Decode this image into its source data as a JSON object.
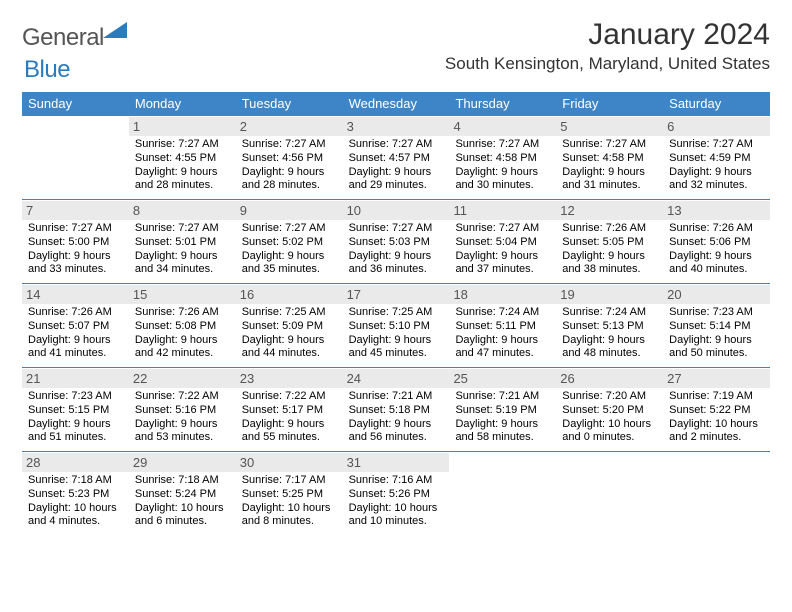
{
  "logo": {
    "general": "General",
    "blue": "Blue"
  },
  "title": "January 2024",
  "location": "South Kensington, Maryland, United States",
  "header_bg": "#3d85c6",
  "daynum_bg": "#eaeaea",
  "day_headers": [
    "Sunday",
    "Monday",
    "Tuesday",
    "Wednesday",
    "Thursday",
    "Friday",
    "Saturday"
  ],
  "weeks": [
    [
      {
        "n": "",
        "sunrise": "",
        "sunset": "",
        "daylight": ""
      },
      {
        "n": "1",
        "sunrise": "Sunrise: 7:27 AM",
        "sunset": "Sunset: 4:55 PM",
        "daylight": "Daylight: 9 hours and 28 minutes."
      },
      {
        "n": "2",
        "sunrise": "Sunrise: 7:27 AM",
        "sunset": "Sunset: 4:56 PM",
        "daylight": "Daylight: 9 hours and 28 minutes."
      },
      {
        "n": "3",
        "sunrise": "Sunrise: 7:27 AM",
        "sunset": "Sunset: 4:57 PM",
        "daylight": "Daylight: 9 hours and 29 minutes."
      },
      {
        "n": "4",
        "sunrise": "Sunrise: 7:27 AM",
        "sunset": "Sunset: 4:58 PM",
        "daylight": "Daylight: 9 hours and 30 minutes."
      },
      {
        "n": "5",
        "sunrise": "Sunrise: 7:27 AM",
        "sunset": "Sunset: 4:58 PM",
        "daylight": "Daylight: 9 hours and 31 minutes."
      },
      {
        "n": "6",
        "sunrise": "Sunrise: 7:27 AM",
        "sunset": "Sunset: 4:59 PM",
        "daylight": "Daylight: 9 hours and 32 minutes."
      }
    ],
    [
      {
        "n": "7",
        "sunrise": "Sunrise: 7:27 AM",
        "sunset": "Sunset: 5:00 PM",
        "daylight": "Daylight: 9 hours and 33 minutes."
      },
      {
        "n": "8",
        "sunrise": "Sunrise: 7:27 AM",
        "sunset": "Sunset: 5:01 PM",
        "daylight": "Daylight: 9 hours and 34 minutes."
      },
      {
        "n": "9",
        "sunrise": "Sunrise: 7:27 AM",
        "sunset": "Sunset: 5:02 PM",
        "daylight": "Daylight: 9 hours and 35 minutes."
      },
      {
        "n": "10",
        "sunrise": "Sunrise: 7:27 AM",
        "sunset": "Sunset: 5:03 PM",
        "daylight": "Daylight: 9 hours and 36 minutes."
      },
      {
        "n": "11",
        "sunrise": "Sunrise: 7:27 AM",
        "sunset": "Sunset: 5:04 PM",
        "daylight": "Daylight: 9 hours and 37 minutes."
      },
      {
        "n": "12",
        "sunrise": "Sunrise: 7:26 AM",
        "sunset": "Sunset: 5:05 PM",
        "daylight": "Daylight: 9 hours and 38 minutes."
      },
      {
        "n": "13",
        "sunrise": "Sunrise: 7:26 AM",
        "sunset": "Sunset: 5:06 PM",
        "daylight": "Daylight: 9 hours and 40 minutes."
      }
    ],
    [
      {
        "n": "14",
        "sunrise": "Sunrise: 7:26 AM",
        "sunset": "Sunset: 5:07 PM",
        "daylight": "Daylight: 9 hours and 41 minutes."
      },
      {
        "n": "15",
        "sunrise": "Sunrise: 7:26 AM",
        "sunset": "Sunset: 5:08 PM",
        "daylight": "Daylight: 9 hours and 42 minutes."
      },
      {
        "n": "16",
        "sunrise": "Sunrise: 7:25 AM",
        "sunset": "Sunset: 5:09 PM",
        "daylight": "Daylight: 9 hours and 44 minutes."
      },
      {
        "n": "17",
        "sunrise": "Sunrise: 7:25 AM",
        "sunset": "Sunset: 5:10 PM",
        "daylight": "Daylight: 9 hours and 45 minutes."
      },
      {
        "n": "18",
        "sunrise": "Sunrise: 7:24 AM",
        "sunset": "Sunset: 5:11 PM",
        "daylight": "Daylight: 9 hours and 47 minutes."
      },
      {
        "n": "19",
        "sunrise": "Sunrise: 7:24 AM",
        "sunset": "Sunset: 5:13 PM",
        "daylight": "Daylight: 9 hours and 48 minutes."
      },
      {
        "n": "20",
        "sunrise": "Sunrise: 7:23 AM",
        "sunset": "Sunset: 5:14 PM",
        "daylight": "Daylight: 9 hours and 50 minutes."
      }
    ],
    [
      {
        "n": "21",
        "sunrise": "Sunrise: 7:23 AM",
        "sunset": "Sunset: 5:15 PM",
        "daylight": "Daylight: 9 hours and 51 minutes."
      },
      {
        "n": "22",
        "sunrise": "Sunrise: 7:22 AM",
        "sunset": "Sunset: 5:16 PM",
        "daylight": "Daylight: 9 hours and 53 minutes."
      },
      {
        "n": "23",
        "sunrise": "Sunrise: 7:22 AM",
        "sunset": "Sunset: 5:17 PM",
        "daylight": "Daylight: 9 hours and 55 minutes."
      },
      {
        "n": "24",
        "sunrise": "Sunrise: 7:21 AM",
        "sunset": "Sunset: 5:18 PM",
        "daylight": "Daylight: 9 hours and 56 minutes."
      },
      {
        "n": "25",
        "sunrise": "Sunrise: 7:21 AM",
        "sunset": "Sunset: 5:19 PM",
        "daylight": "Daylight: 9 hours and 58 minutes."
      },
      {
        "n": "26",
        "sunrise": "Sunrise: 7:20 AM",
        "sunset": "Sunset: 5:20 PM",
        "daylight": "Daylight: 10 hours and 0 minutes."
      },
      {
        "n": "27",
        "sunrise": "Sunrise: 7:19 AM",
        "sunset": "Sunset: 5:22 PM",
        "daylight": "Daylight: 10 hours and 2 minutes."
      }
    ],
    [
      {
        "n": "28",
        "sunrise": "Sunrise: 7:18 AM",
        "sunset": "Sunset: 5:23 PM",
        "daylight": "Daylight: 10 hours and 4 minutes."
      },
      {
        "n": "29",
        "sunrise": "Sunrise: 7:18 AM",
        "sunset": "Sunset: 5:24 PM",
        "daylight": "Daylight: 10 hours and 6 minutes."
      },
      {
        "n": "30",
        "sunrise": "Sunrise: 7:17 AM",
        "sunset": "Sunset: 5:25 PM",
        "daylight": "Daylight: 10 hours and 8 minutes."
      },
      {
        "n": "31",
        "sunrise": "Sunrise: 7:16 AM",
        "sunset": "Sunset: 5:26 PM",
        "daylight": "Daylight: 10 hours and 10 minutes."
      },
      {
        "n": "",
        "sunrise": "",
        "sunset": "",
        "daylight": ""
      },
      {
        "n": "",
        "sunrise": "",
        "sunset": "",
        "daylight": ""
      },
      {
        "n": "",
        "sunrise": "",
        "sunset": "",
        "daylight": ""
      }
    ]
  ]
}
